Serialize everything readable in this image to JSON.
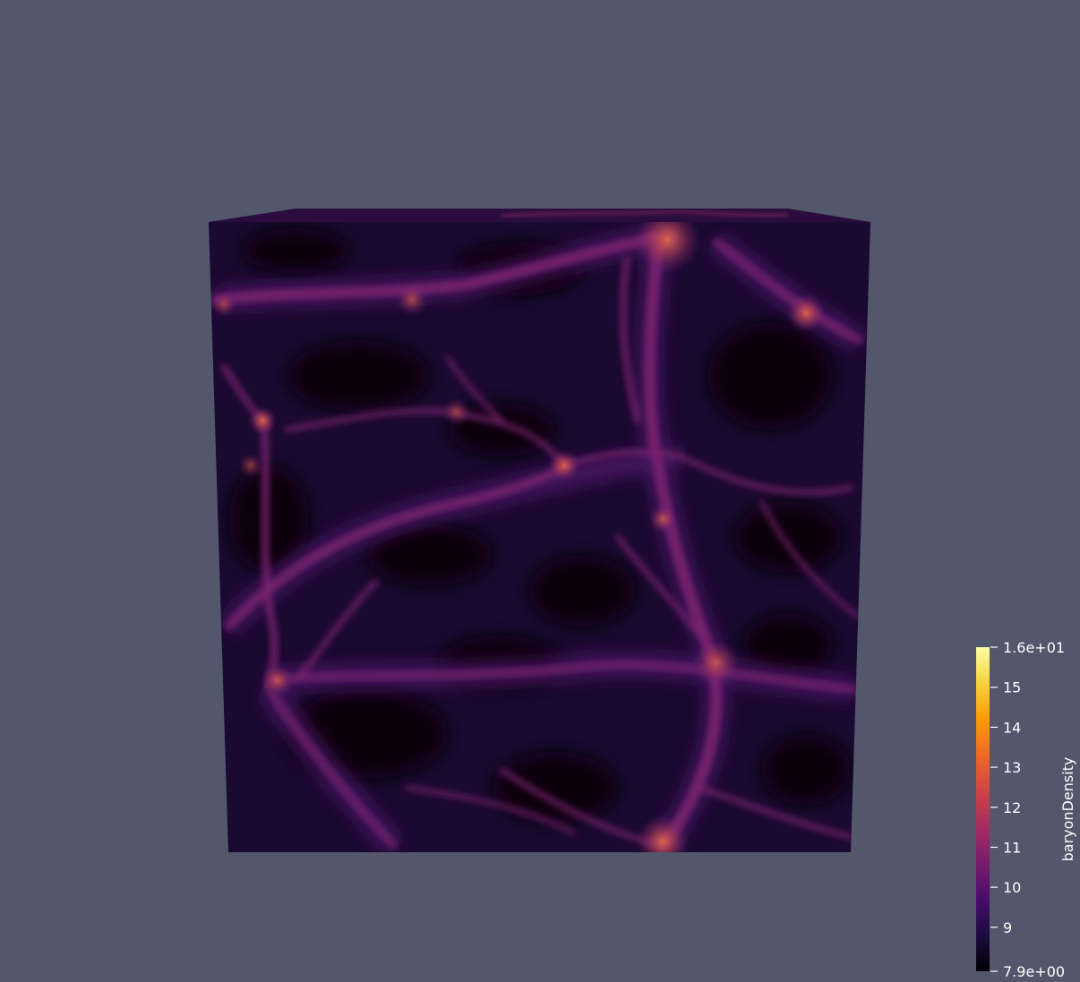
{
  "scene": {
    "background_color": "#52576b",
    "object": "volume-cube",
    "colormap": "inferno"
  },
  "colorbar": {
    "title": "baryonDensity",
    "range": [
      7.9,
      16.0
    ],
    "max_label": "1.6e+01",
    "min_label": "7.9e+00",
    "ticks": [
      {
        "value": 15,
        "label": "15"
      },
      {
        "value": 14,
        "label": "14"
      },
      {
        "value": 13,
        "label": "13"
      },
      {
        "value": 12,
        "label": "12"
      },
      {
        "value": 11,
        "label": "11"
      },
      {
        "value": 10,
        "label": "10"
      },
      {
        "value": 9,
        "label": "9"
      }
    ],
    "gradient_stops": [
      "#000004",
      "#1b0c41",
      "#4a0c6b",
      "#781c6d",
      "#a52c60",
      "#cf4446",
      "#ed6925",
      "#fb9b06",
      "#f7d13d",
      "#fcffa4"
    ]
  }
}
